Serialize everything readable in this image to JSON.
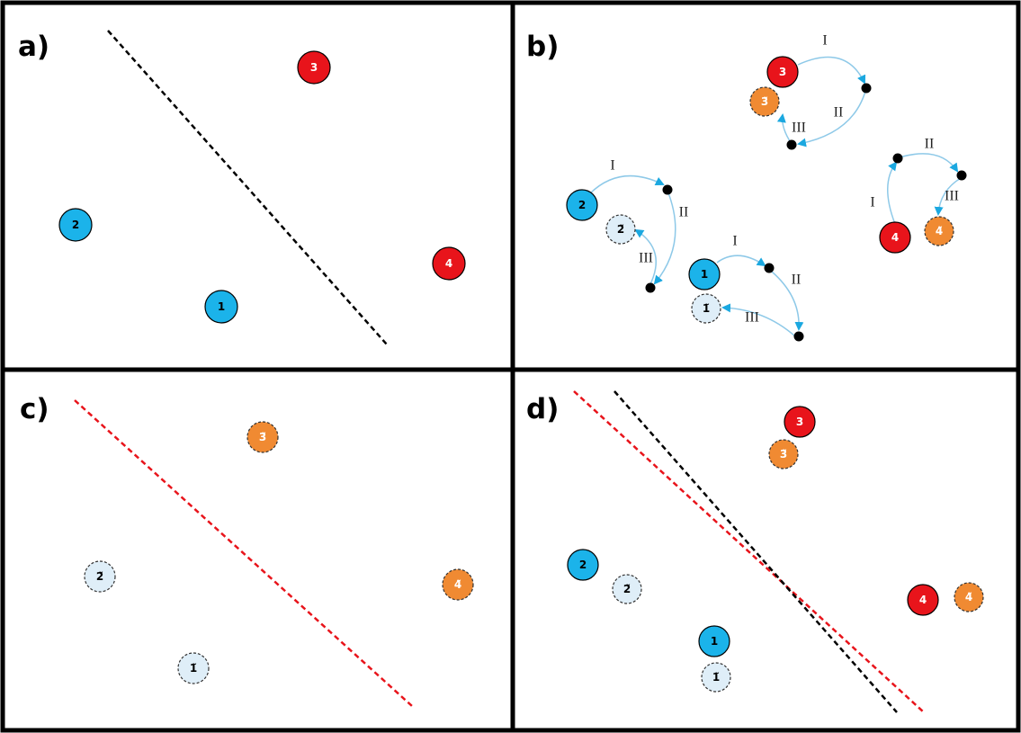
{
  "colors": {
    "original_class_a": "#1bb3ea",
    "original_class_b": "#e8141b",
    "transformed_class_a": "#dfeef8",
    "transformed_class_b": "#f08a32",
    "arrow": "#8ec9e8",
    "arrowhead": "#1ba8e0",
    "original_boundary": "#000000",
    "new_boundary": "#e8141b"
  },
  "panels": [
    {
      "id": "a",
      "label": "a)"
    },
    {
      "id": "b",
      "label": "b)"
    },
    {
      "id": "c",
      "label": "c)"
    },
    {
      "id": "d",
      "label": "d)"
    }
  ],
  "nodes": {
    "n1": "1",
    "n2": "2",
    "n3": "3",
    "n4": "4",
    "t1": "1̃",
    "t2": "2̃",
    "t3": "3̃",
    "t4": "4̃"
  },
  "steps": {
    "I": "I",
    "II": "II",
    "III": "III"
  }
}
